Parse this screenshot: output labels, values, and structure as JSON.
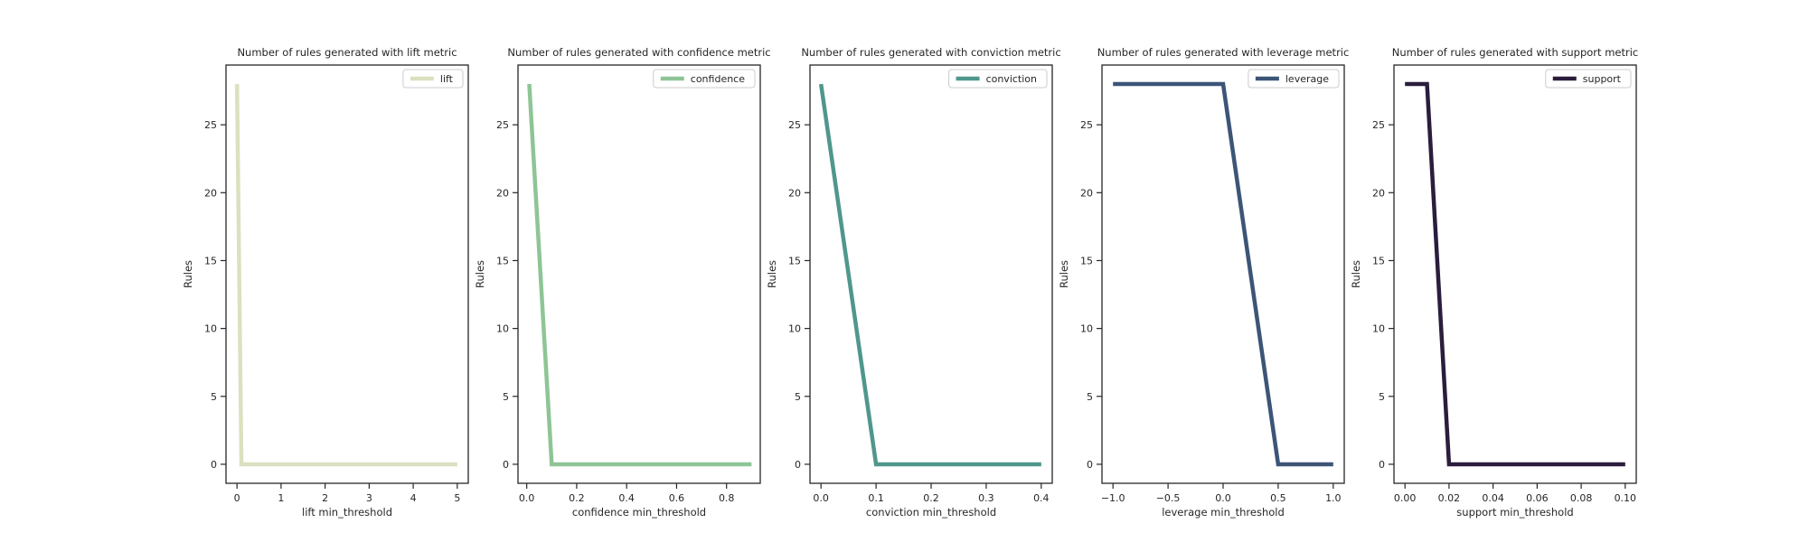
{
  "chart_data": [
    {
      "type": "line",
      "title": "Number of rules generated with lift metric",
      "xlabel": "lift min_threshold",
      "ylabel": "Rules",
      "xlim": [
        -0.25,
        5.25
      ],
      "ylim": [
        -1.4,
        29.4
      ],
      "xticks": [
        0,
        1,
        2,
        3,
        4,
        5
      ],
      "xtick_labels": [
        "0",
        "1",
        "2",
        "3",
        "4",
        "5"
      ],
      "yticks": [
        0,
        5,
        10,
        15,
        20,
        25
      ],
      "ytick_labels": [
        "0",
        "5",
        "10",
        "15",
        "20",
        "25"
      ],
      "legend_position": "top-right",
      "grid": false,
      "series": [
        {
          "name": "lift",
          "color": "#dde0c0",
          "x": [
            0,
            0.1,
            0.5,
            1,
            1.5,
            2,
            2.5,
            3,
            3.5,
            4,
            4.5,
            5
          ],
          "y": [
            28,
            0,
            0,
            0,
            0,
            0,
            0,
            0,
            0,
            0,
            0,
            0
          ]
        }
      ]
    },
    {
      "type": "line",
      "title": "Number of rules generated with confidence metric",
      "xlabel": "confidence min_threshold",
      "ylabel": "Rules",
      "xlim": [
        -0.035,
        0.935
      ],
      "ylim": [
        -1.4,
        29.4
      ],
      "xticks": [
        0,
        0.2,
        0.4,
        0.6,
        0.8
      ],
      "xtick_labels": [
        "0.0",
        "0.2",
        "0.4",
        "0.6",
        "0.8"
      ],
      "yticks": [
        0,
        5,
        10,
        15,
        20,
        25
      ],
      "ytick_labels": [
        "0",
        "5",
        "10",
        "15",
        "20",
        "25"
      ],
      "legend_position": "top-right",
      "grid": false,
      "series": [
        {
          "name": "confidence",
          "color": "#8ec596",
          "x": [
            0.01,
            0.1,
            0.2,
            0.3,
            0.4,
            0.5,
            0.6,
            0.7,
            0.8,
            0.9
          ],
          "y": [
            28,
            0,
            0,
            0,
            0,
            0,
            0,
            0,
            0,
            0
          ]
        }
      ]
    },
    {
      "type": "line",
      "title": "Number of rules generated with conviction metric",
      "xlabel": "conviction min_threshold",
      "ylabel": "Rules",
      "xlim": [
        -0.02,
        0.42
      ],
      "ylim": [
        -1.4,
        29.4
      ],
      "xticks": [
        0,
        0.1,
        0.2,
        0.3,
        0.4
      ],
      "xtick_labels": [
        "0.0",
        "0.1",
        "0.2",
        "0.3",
        "0.4"
      ],
      "yticks": [
        0,
        5,
        10,
        15,
        20,
        25
      ],
      "ytick_labels": [
        "0",
        "5",
        "10",
        "15",
        "20",
        "25"
      ],
      "legend_position": "top-right",
      "grid": false,
      "series": [
        {
          "name": "conviction",
          "color": "#4f978c",
          "x": [
            0,
            0.1,
            0.2,
            0.3,
            0.4
          ],
          "y": [
            28,
            0,
            0,
            0,
            0
          ]
        }
      ]
    },
    {
      "type": "line",
      "title": "Number of rules generated with leverage metric",
      "xlabel": "leverage min_threshold",
      "ylabel": "Rules",
      "xlim": [
        -1.1,
        1.1
      ],
      "ylim": [
        -1.4,
        29.4
      ],
      "xticks": [
        -1,
        -0.5,
        0,
        0.5,
        1
      ],
      "xtick_labels": [
        "−1.0",
        "−0.5",
        "0.0",
        "0.5",
        "1.0"
      ],
      "yticks": [
        0,
        5,
        10,
        15,
        20,
        25
      ],
      "ytick_labels": [
        "0",
        "5",
        "10",
        "15",
        "20",
        "25"
      ],
      "legend_position": "top-right",
      "grid": false,
      "series": [
        {
          "name": "leverage",
          "color": "#3c5577",
          "x": [
            -1,
            -0.5,
            0,
            0.5,
            1
          ],
          "y": [
            28,
            28,
            28,
            0,
            0
          ]
        }
      ]
    },
    {
      "type": "line",
      "title": "Number of rules generated with support metric",
      "xlabel": "support min_threshold",
      "ylabel": "Rules",
      "xlim": [
        -0.005,
        0.105
      ],
      "ylim": [
        -1.4,
        29.4
      ],
      "xticks": [
        0,
        0.02,
        0.04,
        0.06,
        0.08,
        0.1
      ],
      "xtick_labels": [
        "0.00",
        "0.02",
        "0.04",
        "0.06",
        "0.08",
        "0.10"
      ],
      "yticks": [
        0,
        5,
        10,
        15,
        20,
        25
      ],
      "ytick_labels": [
        "0",
        "5",
        "10",
        "15",
        "20",
        "25"
      ],
      "legend_position": "top-right",
      "grid": false,
      "series": [
        {
          "name": "support",
          "color": "#2b1d3d",
          "x": [
            0,
            0.01,
            0.02,
            0.03,
            0.04,
            0.05,
            0.06,
            0.07,
            0.08,
            0.09,
            0.1
          ],
          "y": [
            28,
            28,
            0,
            0,
            0,
            0,
            0,
            0,
            0,
            0,
            0
          ]
        }
      ]
    }
  ]
}
